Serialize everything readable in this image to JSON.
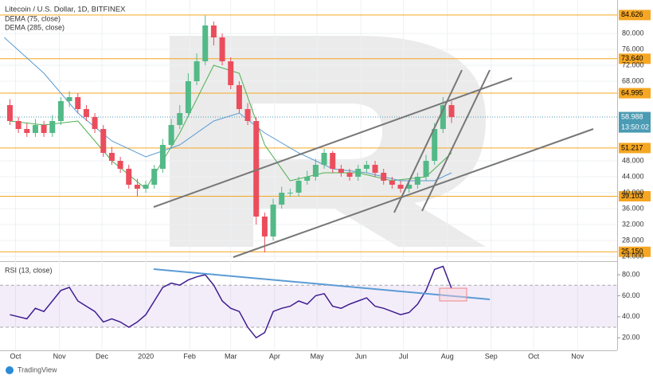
{
  "chart_data": [
    {
      "type": "candlestick",
      "title": "Litecoin / U.S. Dollar, 1D, BITFINEX",
      "ylim": [
        22.8,
        88.4
      ],
      "yticks": [
        {
          "value": 24,
          "label": "24.000"
        },
        {
          "value": 28,
          "label": "28.000"
        },
        {
          "value": 32,
          "label": "32.000"
        },
        {
          "value": 36,
          "label": "36.000"
        },
        {
          "value": 40,
          "label": "40.000"
        },
        {
          "value": 44,
          "label": "44.000"
        },
        {
          "value": 48,
          "label": "48.000"
        },
        {
          "value": 68,
          "label": "68.000"
        },
        {
          "value": 72,
          "label": "72.000"
        },
        {
          "value": 76,
          "label": "76.000"
        },
        {
          "value": 80,
          "label": "80.000"
        }
      ],
      "xlim": [
        -103,
        333
      ],
      "xticks": [
        {
          "value": -92,
          "label": "Oct"
        },
        {
          "value": -61,
          "label": "Nov"
        },
        {
          "value": -31,
          "label": "Dec"
        },
        {
          "value": 0,
          "label": "2020"
        },
        {
          "value": 31,
          "label": "Feb"
        },
        {
          "value": 60,
          "label": "Mar"
        },
        {
          "value": 91,
          "label": "Apr"
        },
        {
          "value": 121,
          "label": "May"
        },
        {
          "value": 152,
          "label": "Jun"
        },
        {
          "value": 182,
          "label": "Jul"
        },
        {
          "value": 213,
          "label": "Aug"
        },
        {
          "value": 244,
          "label": "Sep"
        },
        {
          "value": 274,
          "label": "Oct"
        },
        {
          "value": 305,
          "label": "Nov"
        }
      ],
      "candles": {
        "up_color": "#53b987",
        "down_color": "#eb4d5c",
        "x": [
          -96,
          -90,
          -84,
          -78,
          -72,
          -66,
          -60,
          -54,
          -48,
          -42,
          -36,
          -30,
          -24,
          -18,
          -12,
          -6,
          0,
          6,
          12,
          18,
          24,
          30,
          36,
          42,
          48,
          54,
          60,
          66,
          72,
          78,
          84,
          90,
          96,
          102,
          108,
          114,
          120,
          126,
          132,
          138,
          144,
          150,
          156,
          162,
          168,
          174,
          180,
          186,
          192,
          198,
          204,
          210,
          216
        ],
        "open": [
          62,
          58,
          56,
          55,
          57,
          55,
          58,
          63,
          64,
          61,
          59,
          56,
          50,
          48,
          46,
          42,
          41,
          42,
          46,
          52,
          57,
          60,
          68,
          73,
          82,
          79,
          73,
          67,
          61,
          58,
          34,
          29,
          37,
          40,
          40,
          43,
          44,
          47,
          50,
          46,
          45,
          44,
          46,
          47,
          45,
          43,
          42,
          41,
          42,
          44,
          48,
          56,
          62
        ],
        "high": [
          63.5,
          59,
          57.5,
          58.5,
          58,
          59.5,
          64,
          65.5,
          65,
          62,
          60,
          57,
          51.5,
          49,
          47,
          43.5,
          43,
          47,
          53.5,
          58.5,
          62,
          70,
          75,
          84.5,
          83,
          80,
          74,
          68,
          62.5,
          59,
          35,
          38.5,
          41.5,
          41,
          44,
          45.5,
          48.5,
          51,
          50.5,
          47,
          46,
          47,
          48,
          48,
          46,
          44,
          43,
          43,
          45,
          49.5,
          57.5,
          64,
          63
        ],
        "low": [
          57,
          55,
          54,
          54,
          54,
          54,
          57,
          61.5,
          60,
          58,
          55,
          49,
          47,
          45,
          41,
          39,
          40,
          41,
          45,
          51,
          56,
          59,
          67,
          72,
          77,
          72,
          66,
          60,
          57,
          32,
          25,
          28,
          36,
          39,
          39,
          42,
          43,
          46,
          45,
          44,
          43,
          43,
          45,
          44,
          42,
          41,
          40,
          40,
          41,
          43,
          47,
          55,
          57.5
        ],
        "close": [
          58,
          56,
          55,
          57,
          55,
          58,
          63,
          64,
          61,
          59,
          56,
          50,
          48,
          46,
          42,
          41,
          42,
          46,
          52,
          57,
          60,
          68,
          73,
          82,
          79,
          73,
          67,
          61,
          58,
          34,
          29,
          37,
          40,
          40,
          43,
          44,
          47,
          50,
          46,
          45,
          44,
          46,
          47,
          45,
          43,
          42,
          41,
          42,
          44,
          48,
          56,
          62,
          59
        ]
      },
      "series": [
        {
          "name": "DEMA (75, close)",
          "color": "#4caf50",
          "x": [
            -96,
            -72,
            -48,
            -24,
            0,
            24,
            48,
            66,
            84,
            102,
            126,
            150,
            174,
            198,
            216
          ],
          "values": [
            58,
            57,
            58,
            48,
            41,
            55,
            72,
            70,
            52,
            43,
            45,
            45,
            43,
            44,
            50
          ]
        },
        {
          "name": "DEMA (285, close)",
          "color": "#5b9bd5",
          "x": [
            -100,
            -72,
            -48,
            -24,
            0,
            24,
            48,
            66,
            84,
            108,
            132,
            156,
            180,
            204,
            216
          ],
          "values": [
            79,
            70,
            60,
            53,
            49,
            52,
            58,
            60,
            55,
            50,
            46,
            45,
            43,
            43,
            45
          ]
        }
      ],
      "levels": [
        84.626,
        {
          "value": 73.64,
          "label": "73.640"
        },
        64.995,
        51.217,
        39.103,
        {
          "value": 25.15,
          "label": "25.150"
        }
      ],
      "level_color": "#f5a623",
      "last_price": 58.988,
      "last_color": "#4a9bb3",
      "countdown": "13:50:02"
    },
    {
      "type": "line",
      "title": "RSI (13, close)",
      "color": "#3f1d8f",
      "ylim": [
        8,
        91.4
      ],
      "yticks": [
        {
          "value": 20,
          "label": "20.00"
        },
        {
          "value": 40,
          "label": "40.00"
        },
        {
          "value": 60,
          "label": "60.00"
        },
        {
          "value": 80,
          "label": "80.00"
        }
      ],
      "band": [
        30,
        70
      ],
      "band_color": "#9c6bd6",
      "x": [
        -96,
        -90,
        -84,
        -78,
        -72,
        -66,
        -60,
        -54,
        -48,
        -42,
        -36,
        -30,
        -24,
        -18,
        -12,
        -6,
        0,
        6,
        12,
        18,
        24,
        30,
        36,
        42,
        48,
        54,
        60,
        66,
        72,
        78,
        84,
        90,
        96,
        102,
        108,
        114,
        120,
        126,
        132,
        138,
        144,
        150,
        156,
        162,
        168,
        174,
        180,
        186,
        192,
        198,
        204,
        210,
        216
      ],
      "values": [
        42,
        40,
        38,
        48,
        45,
        55,
        65,
        68,
        55,
        50,
        45,
        35,
        38,
        35,
        30,
        35,
        42,
        55,
        68,
        72,
        70,
        75,
        78,
        80,
        70,
        55,
        48,
        45,
        30,
        20,
        25,
        45,
        48,
        50,
        55,
        52,
        60,
        62,
        50,
        48,
        52,
        55,
        58,
        50,
        48,
        45,
        42,
        44,
        52,
        65,
        85,
        88,
        67
      ]
    }
  ],
  "footer": "TradingView"
}
